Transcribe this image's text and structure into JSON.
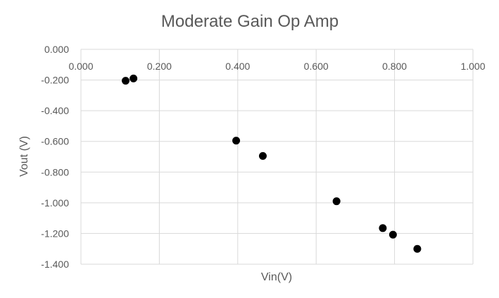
{
  "chart_data": {
    "type": "scatter",
    "title": "Moderate Gain Op Amp",
    "xlabel": "Vin(V)",
    "ylabel": "Vout (V)",
    "xlim": [
      0,
      1
    ],
    "ylim": [
      -1.4,
      0
    ],
    "x_ticks": [
      "0.000",
      "0.200",
      "0.400",
      "0.600",
      "0.800",
      "1.000"
    ],
    "y_ticks": [
      "0.000",
      "-0.200",
      "-0.400",
      "-0.600",
      "-0.800",
      "-1.000",
      "-1.200",
      "-1.400"
    ],
    "grid": true,
    "legend": "none",
    "marker_color": "#000000",
    "series": [
      {
        "x": [
          0.114,
          0.134,
          0.396,
          0.464,
          0.652,
          0.77,
          0.796,
          0.858
        ],
        "y": [
          -0.205,
          -0.19,
          -0.595,
          -0.695,
          -0.99,
          -1.165,
          -1.208,
          -1.3
        ]
      }
    ]
  }
}
